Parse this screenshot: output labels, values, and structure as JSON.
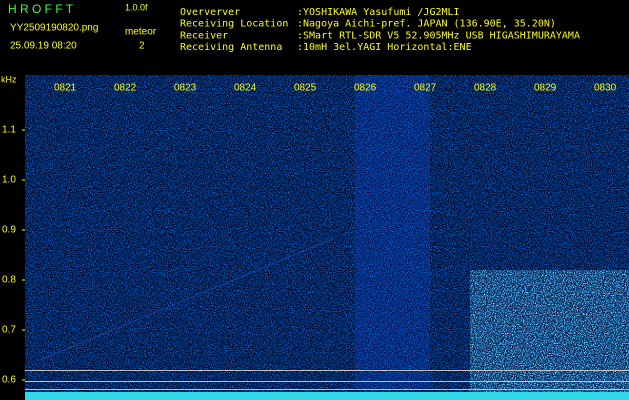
{
  "header": {
    "app_name": "H R O F F T",
    "version": "1.0.0f",
    "file_name": "YY2509190820.png",
    "date_time": "25.09.19 08:20",
    "meteor_label": "meteor",
    "meteor_count": "2",
    "info": [
      {
        "label": "Oververver",
        "value": ":YOSHIKAWA Yasufumi /JG2MLI"
      },
      {
        "label": "Receiving Location",
        "value": ":Nagoya Aichi-pref. JAPAN (136.90E, 35.20N)"
      },
      {
        "label": "Receiver",
        "value": ":SMart RTL-SDR V5 52.905MHz USB HIGASHIMURAYAMA"
      },
      {
        "label": "Receiving Antenna",
        "value": ":10mH 3el.YAGI Horizontal:ENE"
      }
    ]
  },
  "spectrogram": {
    "unit": "kHz",
    "y_labels": [
      "1.1",
      "1.0",
      "0.9",
      "0.8",
      "0.7",
      "0.6"
    ],
    "time_labels": [
      "0821",
      "0822",
      "0823",
      "0824",
      "0825",
      "0826",
      "0827",
      "0828",
      "0829",
      "0830"
    ]
  }
}
